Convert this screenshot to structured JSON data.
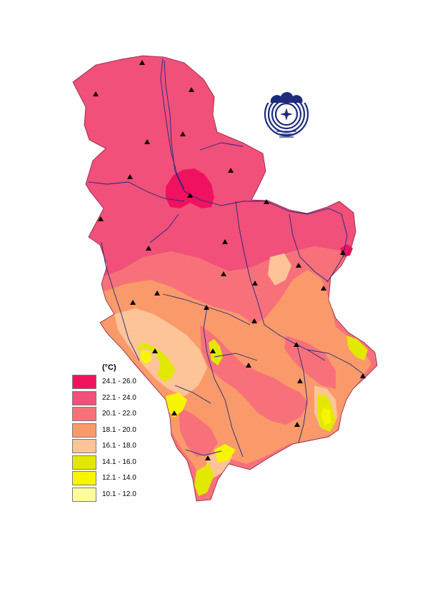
{
  "legend": {
    "title": "(°C)",
    "classes": [
      {
        "label": "24.1 - 26.0",
        "color": "#f0125f"
      },
      {
        "label": "22.1 - 24.0",
        "color": "#f0507a"
      },
      {
        "label": "20.1 - 22.0",
        "color": "#f8717a"
      },
      {
        "label": "18.1 - 20.0",
        "color": "#fa9a6a"
      },
      {
        "label": "16.1 - 18.0",
        "color": "#fcc497"
      },
      {
        "label": "14.1 - 16.0",
        "color": "#e3e800"
      },
      {
        "label": "12.1 - 14.0",
        "color": "#f8f500"
      },
      {
        "label": "10.1 - 12.0",
        "color": "#fefc9c"
      }
    ]
  },
  "colors": {
    "river": "#1a2a80",
    "station": "#000000",
    "logo": "#1d2b7d"
  },
  "icons": {
    "logo": "hydrometeorological-service-emblem",
    "station": "triangle-station-marker"
  }
}
